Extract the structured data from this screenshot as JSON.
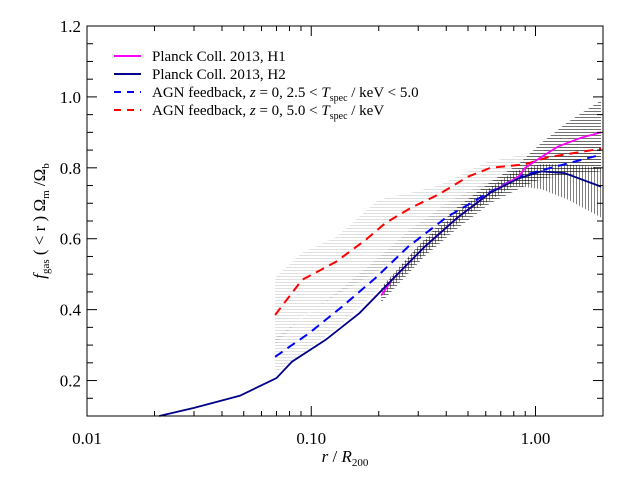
{
  "chart_data": {
    "type": "line",
    "title": "",
    "xlabel": {
      "main": "r",
      "sep": " / ",
      "var": "R",
      "sub": "200"
    },
    "ylabel": {
      "f": "f",
      "fsub": "gas",
      "mid": " ( < r ) Ω",
      "msub": "m",
      "div": " /Ω",
      "bsub": "b"
    },
    "x_scale": "log",
    "xlim": [
      0.01,
      2.0
    ],
    "ylim": [
      0.1,
      1.2
    ],
    "x_ticks": [
      {
        "v": 0.01,
        "label": "0.01"
      },
      {
        "v": 0.1,
        "label": "0.10"
      },
      {
        "v": 1.0,
        "label": "1.00"
      }
    ],
    "y_ticks": [
      {
        "v": 0.2,
        "label": "0.2"
      },
      {
        "v": 0.4,
        "label": "0.4"
      },
      {
        "v": 0.6,
        "label": "0.6"
      },
      {
        "v": 0.8,
        "label": "0.8"
      },
      {
        "v": 1.0,
        "label": "1.0"
      },
      {
        "v": 1.2,
        "label": "1.2"
      }
    ],
    "grid": false,
    "legend_position": "top-left",
    "legend": [
      {
        "text": "Planck Coll. 2013, H1"
      },
      {
        "text": "Planck Coll. 2013, H2"
      },
      {
        "pre": "AGN feedback, ",
        "z": "z",
        "mid": " = 0, 2.5 < ",
        "T": "T",
        "Tsub": "spec",
        "post": " / keV < 5.0"
      },
      {
        "pre": "AGN feedback, ",
        "z": "z",
        "mid": " = 0, 5.0 < ",
        "T": "T",
        "Tsub": "spec",
        "post": " / keV"
      }
    ],
    "series": [
      {
        "name": "Planck Coll. 2013, H1",
        "color": "#ff00ff",
        "style": "solid",
        "x": [
          0.205,
          0.229,
          0.32,
          0.45,
          0.63,
          0.84,
          0.9,
          1.06,
          1.26,
          1.6,
          1.96
        ],
        "y": [
          0.44,
          0.484,
          0.577,
          0.66,
          0.73,
          0.775,
          0.8,
          0.83,
          0.86,
          0.885,
          0.9
        ],
        "band": {
          "x": [
            0.205,
            0.32,
            0.45,
            0.63,
            0.84,
            1.06,
            1.4,
            1.96
          ],
          "lower": [
            0.42,
            0.55,
            0.63,
            0.7,
            0.74,
            0.77,
            0.78,
            0.79
          ],
          "upper": [
            0.46,
            0.6,
            0.69,
            0.76,
            0.81,
            0.87,
            0.93,
            0.99
          ]
        }
      },
      {
        "name": "Planck Coll. 2013, H2",
        "color": "#00008b",
        "style": "solid",
        "x": [
          0.021,
          0.03,
          0.048,
          0.07,
          0.082,
          0.116,
          0.164,
          0.229,
          0.32,
          0.45,
          0.63,
          0.84,
          1.06,
          1.35,
          1.96
        ],
        "y": [
          0.1,
          0.123,
          0.157,
          0.207,
          0.253,
          0.315,
          0.39,
          0.484,
          0.577,
          0.66,
          0.73,
          0.77,
          0.79,
          0.785,
          0.747
        ],
        "band": {
          "x": [
            0.21,
            0.3,
            0.5,
            0.8,
            1.06,
            1.4,
            1.96
          ],
          "lower": [
            0.44,
            0.54,
            0.67,
            0.75,
            0.74,
            0.71,
            0.66
          ],
          "upper": [
            0.47,
            0.58,
            0.7,
            0.79,
            0.81,
            0.81,
            0.8
          ]
        }
      },
      {
        "name": "AGN feedback, z = 0, 2.5 < Tspec / keV < 5.0",
        "color": "#0000ff",
        "style": "dashed",
        "x": [
          0.069,
          0.098,
          0.137,
          0.194,
          0.27,
          0.4,
          0.6,
          0.84,
          1.17,
          1.96
        ],
        "y": [
          0.267,
          0.334,
          0.408,
          0.49,
          0.577,
          0.66,
          0.725,
          0.775,
          0.8,
          0.837
        ],
        "band": {
          "x": [
            0.069,
            0.098,
            0.137,
            0.194,
            0.27,
            0.4,
            0.6,
            0.84,
            1.17,
            1.96
          ],
          "lower": [
            0.22,
            0.29,
            0.36,
            0.45,
            0.54,
            0.63,
            0.7,
            0.75,
            0.77,
            0.8
          ],
          "upper": [
            0.32,
            0.39,
            0.46,
            0.54,
            0.62,
            0.7,
            0.76,
            0.8,
            0.83,
            0.87
          ]
        }
      },
      {
        "name": "AGN feedback, z = 0, 5.0 < Tspec / keV",
        "color": "#ff0000",
        "style": "dashed",
        "x": [
          0.069,
          0.091,
          0.129,
          0.175,
          0.215,
          0.28,
          0.37,
          0.5,
          0.63,
          0.9,
          1.14,
          1.96
        ],
        "y": [
          0.385,
          0.484,
          0.535,
          0.597,
          0.645,
          0.688,
          0.725,
          0.775,
          0.8,
          0.81,
          0.83,
          0.854
        ],
        "band": {
          "x": [
            0.069,
            0.091,
            0.129,
            0.2,
            0.28,
            0.37,
            0.6,
            1.0,
            1.96
          ],
          "lower": [
            0.3,
            0.38,
            0.44,
            0.51,
            0.58,
            0.63,
            0.73,
            0.77,
            0.8
          ],
          "upper": [
            0.49,
            0.56,
            0.605,
            0.71,
            0.73,
            0.75,
            0.815,
            0.845,
            0.88
          ]
        }
      }
    ]
  }
}
